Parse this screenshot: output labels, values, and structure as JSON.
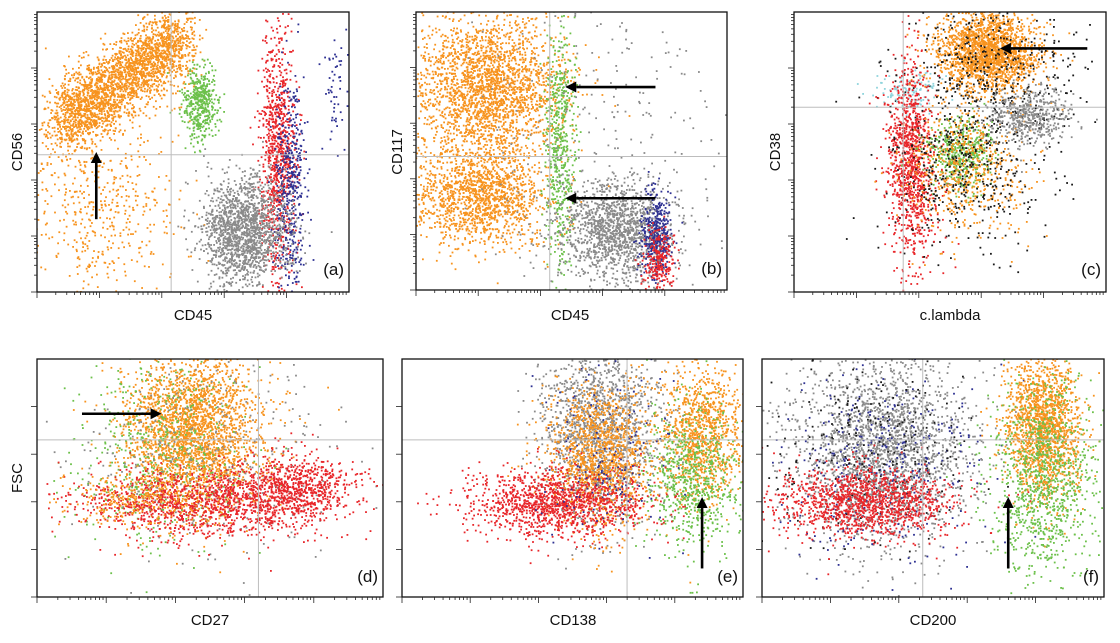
{
  "colors": {
    "orange": "#f7931e",
    "green": "#6cc04a",
    "red": "#e8262a",
    "blue": "#2e3192",
    "gray": "#8a8a8a",
    "cyan": "#8fd4dc",
    "black": "#1a1a1a"
  },
  "chart_data": [
    {
      "id": "a",
      "type": "scatter",
      "panel_label": "(a)",
      "xlabel": "CD45",
      "ylabel": "CD56",
      "xscale": "log",
      "grid": true,
      "populations": [
        {
          "color": "orange",
          "shape": "diagonal",
          "center": [
            0.27,
            0.76
          ],
          "spread": [
            0.2,
            0.07
          ],
          "count": 2600
        },
        {
          "color": "orange",
          "shape": "blob",
          "center": [
            0.2,
            0.28
          ],
          "spread": [
            0.13,
            0.17
          ],
          "count": 500
        },
        {
          "color": "green",
          "shape": "blob",
          "center": [
            0.52,
            0.67
          ],
          "spread": [
            0.025,
            0.07
          ],
          "count": 450
        },
        {
          "color": "red",
          "shape": "blob",
          "center": [
            0.77,
            0.5
          ],
          "spread": [
            0.028,
            0.22
          ],
          "count": 900
        },
        {
          "color": "blue",
          "shape": "blob",
          "center": [
            0.81,
            0.38
          ],
          "spread": [
            0.025,
            0.2
          ],
          "count": 450
        },
        {
          "color": "gray",
          "shape": "blob",
          "center": [
            0.66,
            0.22
          ],
          "spread": [
            0.07,
            0.1
          ],
          "count": 1600
        },
        {
          "color": "blue",
          "shape": "blob",
          "center": [
            0.96,
            0.75
          ],
          "spread": [
            0.025,
            0.12
          ],
          "count": 60
        }
      ],
      "arrows": [
        {
          "from": [
            0.19,
            0.26
          ],
          "to": [
            0.19,
            0.5
          ]
        }
      ]
    },
    {
      "id": "b",
      "type": "scatter",
      "panel_label": "(b)",
      "xlabel": "CD45",
      "ylabel": "CD117",
      "xscale": "log",
      "grid": true,
      "populations": [
        {
          "color": "orange",
          "shape": "blob",
          "center": [
            0.23,
            0.73
          ],
          "spread": [
            0.12,
            0.13
          ],
          "count": 2400
        },
        {
          "color": "orange",
          "shape": "blob",
          "center": [
            0.2,
            0.34
          ],
          "spread": [
            0.11,
            0.09
          ],
          "count": 1500
        },
        {
          "color": "green",
          "shape": "blob",
          "center": [
            0.46,
            0.52
          ],
          "spread": [
            0.025,
            0.22
          ],
          "count": 550
        },
        {
          "color": "gray",
          "shape": "blob",
          "center": [
            0.64,
            0.22
          ],
          "spread": [
            0.09,
            0.09
          ],
          "count": 1400
        },
        {
          "color": "blue",
          "shape": "blob",
          "center": [
            0.77,
            0.2
          ],
          "spread": [
            0.025,
            0.08
          ],
          "count": 400
        },
        {
          "color": "red",
          "shape": "blob",
          "center": [
            0.78,
            0.1
          ],
          "spread": [
            0.025,
            0.06
          ],
          "count": 250
        },
        {
          "color": "gray",
          "shape": "blob",
          "center": [
            0.6,
            0.5
          ],
          "spread": [
            0.22,
            0.35
          ],
          "count": 300
        }
      ],
      "arrows": [
        {
          "from": [
            0.77,
            0.73
          ],
          "to": [
            0.48,
            0.73
          ]
        },
        {
          "from": [
            0.77,
            0.33
          ],
          "to": [
            0.48,
            0.33
          ]
        }
      ]
    },
    {
      "id": "c",
      "type": "scatter",
      "panel_label": "(c)",
      "xlabel": "c.lambda",
      "ylabel": "CD38",
      "xscale": "log",
      "grid": true,
      "populations": [
        {
          "color": "orange",
          "shape": "blob",
          "center": [
            0.62,
            0.86
          ],
          "spread": [
            0.08,
            0.07
          ],
          "count": 2000
        },
        {
          "color": "black",
          "shape": "blob",
          "center": [
            0.62,
            0.78
          ],
          "spread": [
            0.14,
            0.13
          ],
          "count": 400
        },
        {
          "color": "cyan",
          "shape": "blob",
          "center": [
            0.36,
            0.72
          ],
          "spread": [
            0.05,
            0.04
          ],
          "count": 120
        },
        {
          "color": "red",
          "shape": "blob",
          "center": [
            0.37,
            0.48
          ],
          "spread": [
            0.035,
            0.17
          ],
          "count": 1000
        },
        {
          "color": "green",
          "shape": "blob",
          "center": [
            0.53,
            0.5
          ],
          "spread": [
            0.05,
            0.06
          ],
          "count": 450
        },
        {
          "color": "orange",
          "shape": "blob",
          "center": [
            0.55,
            0.45
          ],
          "spread": [
            0.1,
            0.12
          ],
          "count": 600
        },
        {
          "color": "black",
          "shape": "blob",
          "center": [
            0.55,
            0.45
          ],
          "spread": [
            0.13,
            0.15
          ],
          "count": 450
        },
        {
          "color": "gray",
          "shape": "blob",
          "center": [
            0.75,
            0.63
          ],
          "spread": [
            0.07,
            0.05
          ],
          "count": 500
        },
        {
          "color": "red",
          "shape": "blob",
          "center": [
            0.4,
            0.22
          ],
          "spread": [
            0.04,
            0.1
          ],
          "count": 80
        }
      ],
      "arrows": [
        {
          "from": [
            0.94,
            0.87
          ],
          "to": [
            0.66,
            0.87
          ]
        }
      ]
    },
    {
      "id": "d",
      "type": "scatter",
      "panel_label": "(d)",
      "xlabel": "CD27",
      "ylabel": "FSC",
      "xscale": "log",
      "grid": true,
      "populations": [
        {
          "color": "orange",
          "shape": "blob",
          "center": [
            0.45,
            0.7
          ],
          "spread": [
            0.1,
            0.17
          ],
          "count": 2600
        },
        {
          "color": "green",
          "shape": "blob",
          "center": [
            0.35,
            0.62
          ],
          "spread": [
            0.12,
            0.2
          ],
          "count": 500
        },
        {
          "color": "gray",
          "shape": "blob",
          "center": [
            0.5,
            0.6
          ],
          "spread": [
            0.2,
            0.22
          ],
          "count": 350
        },
        {
          "color": "red",
          "shape": "blob",
          "center": [
            0.48,
            0.4
          ],
          "spread": [
            0.18,
            0.07
          ],
          "count": 1300
        },
        {
          "color": "red",
          "shape": "blob",
          "center": [
            0.74,
            0.46
          ],
          "spread": [
            0.09,
            0.07
          ],
          "count": 700
        },
        {
          "color": "orange",
          "shape": "blob",
          "center": [
            0.3,
            0.42
          ],
          "spread": [
            0.12,
            0.06
          ],
          "count": 300
        }
      ],
      "arrows": [
        {
          "from": [
            0.13,
            0.77
          ],
          "to": [
            0.36,
            0.77
          ]
        }
      ]
    },
    {
      "id": "e",
      "type": "scatter",
      "panel_label": "(e)",
      "xlabel": "CD138",
      "ylabel": "",
      "xscale": "log",
      "grid": true,
      "populations": [
        {
          "color": "gray",
          "shape": "blob",
          "center": [
            0.58,
            0.72
          ],
          "spread": [
            0.09,
            0.18
          ],
          "count": 1500
        },
        {
          "color": "orange",
          "shape": "blob",
          "center": [
            0.58,
            0.6
          ],
          "spread": [
            0.08,
            0.15
          ],
          "count": 1300
        },
        {
          "color": "orange",
          "shape": "blob",
          "center": [
            0.88,
            0.7
          ],
          "spread": [
            0.06,
            0.15
          ],
          "count": 1000
        },
        {
          "color": "green",
          "shape": "blob",
          "center": [
            0.85,
            0.5
          ],
          "spread": [
            0.07,
            0.15
          ],
          "count": 700
        },
        {
          "color": "red",
          "shape": "blob",
          "center": [
            0.46,
            0.4
          ],
          "spread": [
            0.13,
            0.07
          ],
          "count": 1300
        },
        {
          "color": "blue",
          "shape": "blob",
          "center": [
            0.6,
            0.6
          ],
          "spread": [
            0.1,
            0.2
          ],
          "count": 150
        }
      ],
      "arrows": [
        {
          "from": [
            0.88,
            0.12
          ],
          "to": [
            0.88,
            0.42
          ]
        }
      ]
    },
    {
      "id": "f",
      "type": "scatter",
      "panel_label": "(f)",
      "xlabel": "CD200",
      "ylabel": "",
      "xscale": "log",
      "grid": true,
      "populations": [
        {
          "color": "gray",
          "shape": "blob",
          "center": [
            0.35,
            0.62
          ],
          "spread": [
            0.13,
            0.2
          ],
          "count": 2300
        },
        {
          "color": "blue",
          "shape": "blob",
          "center": [
            0.35,
            0.55
          ],
          "spread": [
            0.15,
            0.2
          ],
          "count": 350
        },
        {
          "color": "black",
          "shape": "blob",
          "center": [
            0.33,
            0.6
          ],
          "spread": [
            0.16,
            0.2
          ],
          "count": 250
        },
        {
          "color": "red",
          "shape": "blob",
          "center": [
            0.3,
            0.4
          ],
          "spread": [
            0.13,
            0.07
          ],
          "count": 1300
        },
        {
          "color": "orange",
          "shape": "blob",
          "center": [
            0.82,
            0.72
          ],
          "spread": [
            0.055,
            0.15
          ],
          "count": 1600
        },
        {
          "color": "green",
          "shape": "blob",
          "center": [
            0.82,
            0.5
          ],
          "spread": [
            0.075,
            0.2
          ],
          "count": 1000
        }
      ],
      "arrows": [
        {
          "from": [
            0.72,
            0.12
          ],
          "to": [
            0.72,
            0.42
          ]
        }
      ]
    }
  ]
}
